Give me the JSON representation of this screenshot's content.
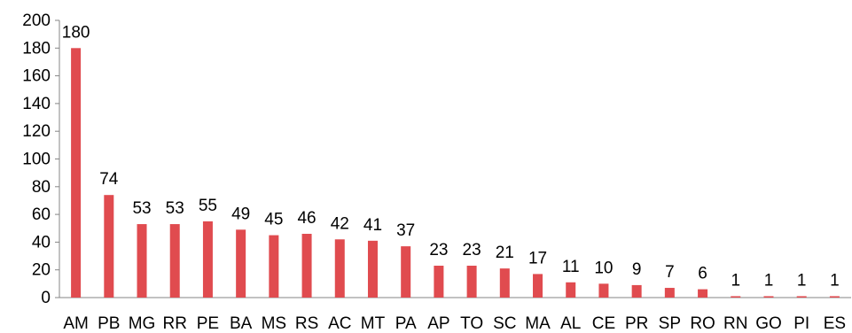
{
  "chart_data": {
    "type": "bar",
    "title": "",
    "xlabel": "",
    "ylabel": "",
    "categories": [
      "AM",
      "PB",
      "MG",
      "RR",
      "PE",
      "BA",
      "MS",
      "RS",
      "AC",
      "MT",
      "PA",
      "AP",
      "TO",
      "SC",
      "MA",
      "AL",
      "CE",
      "PR",
      "SP",
      "RO",
      "RN",
      "GO",
      "PI",
      "ES"
    ],
    "values": [
      180,
      74,
      53,
      53,
      55,
      49,
      45,
      46,
      42,
      41,
      37,
      23,
      23,
      21,
      17,
      11,
      10,
      9,
      7,
      6,
      1,
      1,
      1,
      1
    ],
    "data_labels": [
      "180",
      "74",
      "53",
      "53",
      "55",
      "49",
      "45",
      "46",
      "42",
      "41",
      "37",
      "23",
      "23",
      "21",
      "17",
      "11",
      "10",
      "9",
      "7",
      "6",
      "1",
      "1",
      "1",
      "1"
    ],
    "ylim": [
      0,
      200
    ],
    "yticks": [
      0,
      20,
      40,
      60,
      80,
      100,
      120,
      140,
      160,
      180,
      200
    ],
    "ytick_labels": [
      "0",
      "20",
      "40",
      "60",
      "80",
      "100",
      "120",
      "140",
      "160",
      "180",
      "200"
    ],
    "grid": false,
    "legend": "none",
    "bar_color": "#E04B4F",
    "axis_color": "#868686"
  }
}
